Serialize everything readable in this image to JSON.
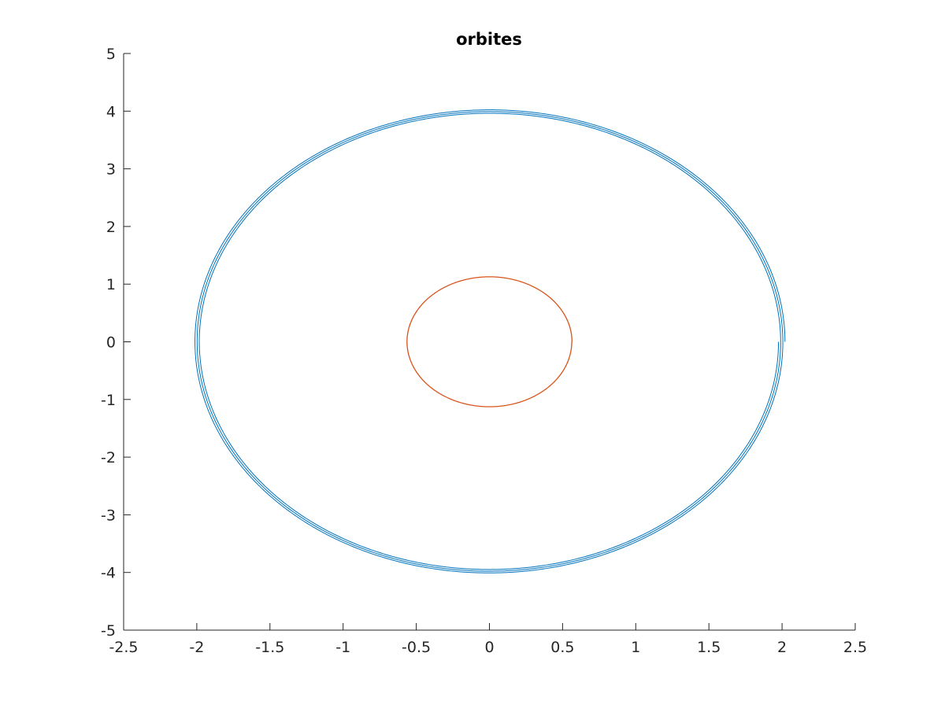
{
  "chart_data": {
    "type": "line",
    "title": "orbites",
    "xlabel": "",
    "ylabel": "",
    "xlim": [
      -2.5,
      2.5
    ],
    "ylim": [
      -5,
      5
    ],
    "x_ticks": [
      -2.5,
      -2,
      -1.5,
      -1,
      -0.5,
      0,
      0.5,
      1,
      1.5,
      2,
      2.5
    ],
    "y_ticks": [
      -5,
      -4,
      -3,
      -2,
      -1,
      0,
      1,
      2,
      3,
      4,
      5
    ],
    "x_tick_labels": [
      "-2.5",
      "-2",
      "-1.5",
      "-1",
      "-0.5",
      "0",
      "0.5",
      "1",
      "1.5",
      "2",
      "2.5"
    ],
    "y_tick_labels": [
      "-5",
      "-4",
      "-3",
      "-2",
      "-1",
      "0",
      "1",
      "2",
      "3",
      "4",
      "5"
    ],
    "grid": false,
    "series": [
      {
        "color": "#0072BD",
        "shape": "ellipse",
        "center": [
          0,
          0
        ],
        "semi_axis_x": 2.02,
        "semi_axis_y": 4.03,
        "turns": 3,
        "spread": 0.022
      },
      {
        "color": "#D95319",
        "shape": "ellipse",
        "center": [
          0,
          0
        ],
        "semi_axis_x": 0.565,
        "semi_axis_y": 1.13,
        "turns": 2,
        "spread": 0.006
      }
    ]
  }
}
